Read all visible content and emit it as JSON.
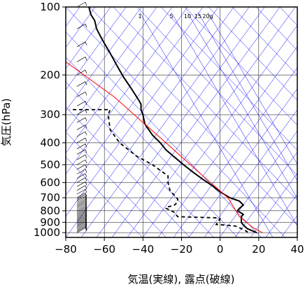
{
  "chart_data": {
    "type": "line",
    "xlabel": "気温(実線), 露点(破線)",
    "ylabel": "気圧(hPa)",
    "xlim": [
      -80,
      40
    ],
    "ylim": [
      1050,
      100
    ],
    "yscale": "log",
    "grid": true,
    "x_ticks": [
      -80,
      -60,
      -40,
      -20,
      0,
      20,
      40
    ],
    "x_tick_labels": [
      "−80",
      "−60",
      "−40",
      "−20",
      "0",
      "20",
      "40"
    ],
    "y_ticks": [
      100,
      200,
      300,
      400,
      500,
      600,
      700,
      800,
      900,
      1000
    ],
    "mixing_ratio_labels": [
      "1",
      "5",
      "10",
      "15",
      "20g"
    ],
    "mixing_ratio_values": [
      1,
      5,
      10,
      15,
      20
    ],
    "series": [
      {
        "style": "solid",
        "color": "#000000",
        "points": [
          [
            19,
            1000
          ],
          [
            14,
            960
          ],
          [
            12,
            925
          ],
          [
            11,
            900
          ],
          [
            11,
            870
          ],
          [
            11,
            850
          ],
          [
            12,
            830
          ],
          [
            9,
            800
          ],
          [
            10,
            780
          ],
          [
            12,
            755
          ],
          [
            10,
            725
          ],
          [
            5,
            700
          ],
          [
            0,
            660
          ],
          [
            -4,
            620
          ],
          [
            -9,
            580
          ],
          [
            -14,
            540
          ],
          [
            -19,
            500
          ],
          [
            -24,
            460
          ],
          [
            -28,
            430
          ],
          [
            -31,
            400
          ],
          [
            -35,
            370
          ],
          [
            -38,
            340
          ],
          [
            -39,
            330
          ],
          [
            -40,
            300
          ],
          [
            -41,
            285
          ],
          [
            -41,
            270
          ],
          [
            -42,
            260
          ],
          [
            -46,
            230
          ],
          [
            -50,
            205
          ],
          [
            -53,
            185
          ],
          [
            -57,
            160
          ],
          [
            -60,
            145
          ],
          [
            -62,
            135
          ],
          [
            -64,
            125
          ],
          [
            -65,
            115
          ],
          [
            -67,
            108
          ],
          [
            -68,
            100
          ]
        ]
      },
      {
        "style": "dashed",
        "color": "#000000",
        "points": [
          [
            14,
            1000
          ],
          [
            14,
            990
          ],
          [
            11,
            960
          ],
          [
            8,
            935
          ],
          [
            2,
            925
          ],
          [
            -2,
            920
          ],
          [
            -1,
            890
          ],
          [
            0,
            870
          ],
          [
            -1,
            860
          ],
          [
            -22,
            850
          ],
          [
            -24,
            810
          ],
          [
            -28,
            780
          ],
          [
            -28,
            770
          ],
          [
            -24,
            760
          ],
          [
            -22,
            730
          ],
          [
            -22,
            710
          ],
          [
            -26,
            650
          ],
          [
            -27,
            600
          ],
          [
            -27,
            560
          ],
          [
            -31,
            530
          ],
          [
            -35,
            500
          ],
          [
            -43,
            460
          ],
          [
            -52,
            400
          ],
          [
            -57,
            350
          ],
          [
            -58,
            300
          ],
          [
            -57,
            285
          ],
          [
            -70,
            285
          ],
          [
            -78,
            285
          ]
        ]
      },
      {
        "style": "solid",
        "color": "#ff0000",
        "points": [
          [
            22,
            1000
          ],
          [
            17,
            950
          ],
          [
            10,
            850
          ],
          [
            4,
            700
          ],
          [
            -10,
            550
          ],
          [
            -28,
            400
          ],
          [
            -55,
            250
          ],
          [
            -82,
            170
          ]
        ]
      }
    ],
    "colors": {
      "isotherm": "#0000ff",
      "grid": "#000000",
      "temperature": "#000000",
      "dewpoint": "#000000",
      "parcel": "#ff0000"
    }
  }
}
